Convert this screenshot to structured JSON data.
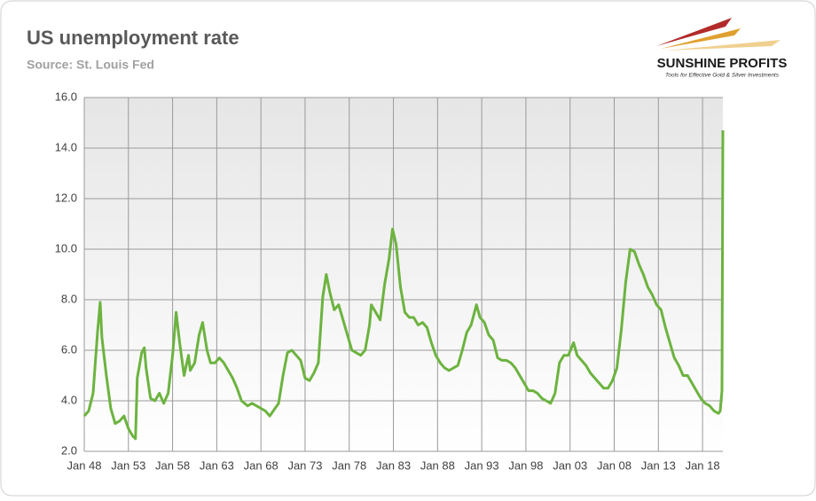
{
  "chart_data": {
    "type": "line",
    "title": "US unemployment rate",
    "subtitle": "Source: St. Louis Fed",
    "logo": {
      "name": "SUNSHINE PROFITS",
      "tagline": "Tools for Effective Gold & Silver Investments"
    },
    "x": [
      1948.0,
      1948.5,
      1949.0,
      1949.5,
      1949.8,
      1950.0,
      1950.5,
      1951.0,
      1951.5,
      1952.0,
      1952.5,
      1953.0,
      1953.5,
      1953.8,
      1954.0,
      1954.5,
      1954.8,
      1955.0,
      1955.5,
      1956.0,
      1956.5,
      1957.0,
      1957.5,
      1958.0,
      1958.4,
      1958.8,
      1959.3,
      1959.8,
      1960.0,
      1960.5,
      1961.0,
      1961.4,
      1961.9,
      1962.3,
      1962.8,
      1963.3,
      1963.8,
      1964.3,
      1964.8,
      1965.3,
      1965.8,
      1966.5,
      1967.0,
      1967.5,
      1968.0,
      1968.5,
      1969.0,
      1969.6,
      1970.0,
      1970.5,
      1971.0,
      1971.5,
      1972.0,
      1972.5,
      1973.0,
      1973.5,
      1974.0,
      1974.5,
      1975.0,
      1975.4,
      1975.8,
      1976.3,
      1976.8,
      1977.3,
      1977.8,
      1978.3,
      1978.8,
      1979.3,
      1979.8,
      1980.3,
      1980.5,
      1981.0,
      1981.5,
      1982.0,
      1982.5,
      1982.9,
      1983.3,
      1983.8,
      1984.3,
      1984.8,
      1985.3,
      1985.8,
      1986.3,
      1986.8,
      1987.3,
      1987.8,
      1988.3,
      1988.8,
      1989.3,
      1989.8,
      1990.3,
      1990.8,
      1991.3,
      1991.8,
      1992.4,
      1992.8,
      1993.3,
      1993.8,
      1994.3,
      1994.8,
      1995.3,
      1995.8,
      1996.3,
      1996.8,
      1997.3,
      1997.8,
      1998.3,
      1998.8,
      1999.3,
      1999.8,
      2000.3,
      2000.8,
      2001.3,
      2001.8,
      2002.3,
      2002.8,
      2003.4,
      2003.8,
      2004.3,
      2004.8,
      2005.3,
      2005.8,
      2006.3,
      2006.8,
      2007.3,
      2007.8,
      2008.3,
      2008.8,
      2009.3,
      2009.8,
      2010.3,
      2010.8,
      2011.3,
      2011.8,
      2012.3,
      2012.8,
      2013.3,
      2013.8,
      2014.3,
      2014.8,
      2015.3,
      2015.8,
      2016.3,
      2016.8,
      2017.3,
      2017.8,
      2018.3,
      2018.8,
      2019.3,
      2019.8,
      2020.0,
      2020.2,
      2020.3
    ],
    "series": [
      {
        "color": "#6cb33f",
        "values": [
          3.4,
          3.6,
          4.3,
          6.7,
          7.9,
          6.5,
          5.0,
          3.7,
          3.1,
          3.2,
          3.4,
          2.9,
          2.6,
          2.5,
          4.9,
          5.9,
          6.1,
          5.3,
          4.1,
          4.0,
          4.3,
          3.9,
          4.3,
          5.8,
          7.5,
          6.3,
          5.0,
          5.8,
          5.2,
          5.5,
          6.6,
          7.1,
          6.0,
          5.5,
          5.5,
          5.7,
          5.5,
          5.2,
          4.9,
          4.5,
          4.0,
          3.8,
          3.9,
          3.8,
          3.7,
          3.6,
          3.4,
          3.7,
          3.9,
          5.0,
          5.9,
          6.0,
          5.8,
          5.6,
          4.9,
          4.8,
          5.1,
          5.5,
          8.1,
          9.0,
          8.3,
          7.6,
          7.8,
          7.2,
          6.6,
          6.0,
          5.9,
          5.8,
          6.0,
          7.0,
          7.8,
          7.5,
          7.2,
          8.6,
          9.6,
          10.8,
          10.2,
          8.5,
          7.5,
          7.3,
          7.3,
          7.0,
          7.1,
          6.9,
          6.3,
          5.8,
          5.5,
          5.3,
          5.2,
          5.3,
          5.4,
          6.0,
          6.7,
          7.0,
          7.8,
          7.3,
          7.1,
          6.6,
          6.4,
          5.7,
          5.6,
          5.6,
          5.5,
          5.3,
          5.0,
          4.7,
          4.4,
          4.4,
          4.3,
          4.1,
          4.0,
          3.9,
          4.3,
          5.5,
          5.8,
          5.8,
          6.3,
          5.8,
          5.6,
          5.4,
          5.1,
          4.9,
          4.7,
          4.5,
          4.5,
          4.8,
          5.3,
          6.8,
          8.7,
          10.0,
          9.9,
          9.4,
          9.0,
          8.5,
          8.2,
          7.8,
          7.6,
          6.9,
          6.3,
          5.7,
          5.4,
          5.0,
          5.0,
          4.7,
          4.4,
          4.1,
          3.9,
          3.8,
          3.6,
          3.5,
          3.6,
          4.4,
          14.7
        ]
      }
    ],
    "xlim": [
      1948,
      2020.3
    ],
    "xticks": [
      {
        "value": 1948,
        "label": "Jan 48"
      },
      {
        "value": 1953,
        "label": "Jan 53"
      },
      {
        "value": 1958,
        "label": "Jan 58"
      },
      {
        "value": 1963,
        "label": "Jan 63"
      },
      {
        "value": 1968,
        "label": "Jan 68"
      },
      {
        "value": 1973,
        "label": "Jan 73"
      },
      {
        "value": 1978,
        "label": "Jan 78"
      },
      {
        "value": 1983,
        "label": "Jan 83"
      },
      {
        "value": 1988,
        "label": "Jan 88"
      },
      {
        "value": 1993,
        "label": "Jan 93"
      },
      {
        "value": 1998,
        "label": "Jan 98"
      },
      {
        "value": 2003,
        "label": "Jan 03"
      },
      {
        "value": 2008,
        "label": "Jan 08"
      },
      {
        "value": 2013,
        "label": "Jan 13"
      },
      {
        "value": 2018,
        "label": "Jan 18"
      }
    ],
    "ylim": [
      2,
      16
    ],
    "yticks": [
      {
        "value": 2,
        "label": "2.0"
      },
      {
        "value": 4,
        "label": "4.0"
      },
      {
        "value": 6,
        "label": "6.0"
      },
      {
        "value": 8,
        "label": "8.0"
      },
      {
        "value": 10,
        "label": "10.0"
      },
      {
        "value": 12,
        "label": "12.0"
      },
      {
        "value": 14,
        "label": "14.0"
      },
      {
        "value": 16,
        "label": "16.0"
      }
    ],
    "grid": true
  }
}
